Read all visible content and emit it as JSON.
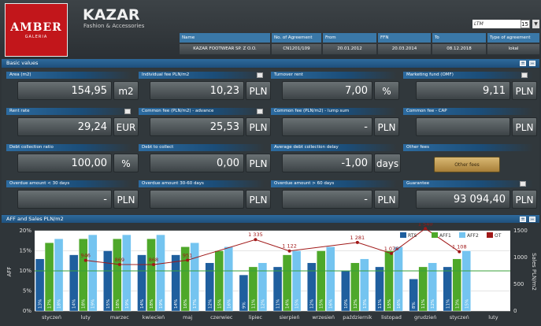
{
  "header": {
    "logo_main": "AMBER",
    "logo_sub": "GALERIA",
    "title": "KAZAR",
    "subtitle": "Fashion & Accessories",
    "period_select": "LTM",
    "period_number": "15"
  },
  "agreement": {
    "headers": [
      "Name",
      "No. of Agreement",
      "From",
      "FFN",
      "To",
      "Type of agreement"
    ],
    "values": [
      "KAZAR FOOTWEAR SP. Z O.O.",
      "CN1201/109",
      "20.01.2012",
      "20.03.2014",
      "08.12.2018",
      "lokal"
    ]
  },
  "basic": {
    "title": "Basic values",
    "fields": [
      {
        "label": "Area (m2)",
        "value": "154,95",
        "unit": "m2"
      },
      {
        "label": "Individual fee PLN/m2",
        "value": "10,23",
        "unit": "PLN"
      },
      {
        "label": "Turnover rent",
        "value": "7,00",
        "unit": "%"
      },
      {
        "label": "Marketing fund (OMF)",
        "value": "9,11",
        "unit": "PLN"
      },
      {
        "label": "Rent rate",
        "value": "29,24",
        "unit": "EUR"
      },
      {
        "label": "Common fee (PLN/m2) - advance",
        "value": "25,53",
        "unit": "PLN"
      },
      {
        "label": "Common fee (PLN/m2) - lump sum",
        "value": "-",
        "unit": "PLN"
      },
      {
        "label": "Common fee - CAP",
        "value": "",
        "unit": "PLN"
      },
      {
        "label": "Debt collection ratio",
        "value": "100,00",
        "unit": "%"
      },
      {
        "label": "Debt to collect",
        "value": "0,00",
        "unit": "PLN"
      },
      {
        "label": "Average debt collection delay",
        "value": "-1,00",
        "unit": "days"
      },
      {
        "label": "Other fees",
        "button": "Other fees"
      },
      {
        "label": "Overdue amount < 30 days",
        "value": "-",
        "unit": "PLN"
      },
      {
        "label": "Overdue amount 30-60 days",
        "value": "",
        "unit": "PLN"
      },
      {
        "label": "Overdue amount > 60 days",
        "value": "-",
        "unit": "PLN"
      },
      {
        "label": "Guarantee",
        "value": "93 094,40",
        "unit": "PLN"
      }
    ]
  },
  "chart_section_title": "AFF and Sales PLN/m2",
  "chart_data": {
    "type": "bar",
    "categories": [
      "styczeń",
      "luty",
      "marzec",
      "kwiecień",
      "maj",
      "czerwiec",
      "lipiec",
      "sierpień",
      "wrzesień",
      "październik",
      "listopad",
      "grudzień",
      "styczeń",
      "luty"
    ],
    "series": [
      {
        "name": "RTS",
        "axis": "left",
        "values": [
          13,
          14,
          15,
          14,
          14,
          12,
          9,
          11,
          12,
          10,
          11,
          8,
          11,
          0
        ],
        "labels": [
          "13%",
          "14%",
          "15%",
          "14%",
          "14%",
          "12%",
          "9%",
          "11%",
          "12%",
          "10%",
          "11%",
          "8%",
          "11%",
          ""
        ]
      },
      {
        "name": "AFF1",
        "axis": "left",
        "values": [
          17,
          18,
          18,
          18,
          16,
          15,
          11,
          14,
          15,
          12,
          15,
          11,
          13,
          0
        ],
        "labels": [
          "17%",
          "18%",
          "18%",
          "18%",
          "16%",
          "15%",
          "11%",
          "14%",
          "15%",
          "12%",
          "15%",
          "11%",
          "13%",
          ""
        ]
      },
      {
        "name": "AFF2",
        "axis": "left",
        "values": [
          18,
          19,
          19,
          19,
          17,
          16,
          12,
          15,
          16,
          13,
          16,
          12,
          15,
          0
        ],
        "labels": [
          "18%",
          "19%",
          "19%",
          "19%",
          "17%",
          "16%",
          "12%",
          "15%",
          "16%",
          "13%",
          "16%",
          "12%",
          "15%",
          ""
        ]
      },
      {
        "name": "OT",
        "axis": "right",
        "type": "line",
        "values": [
          null,
          946,
          869,
          868,
          951,
          null,
          1335,
          1122,
          null,
          1281,
          1076,
          1540,
          1108,
          null
        ],
        "labels": [
          "",
          "946",
          "869",
          "868",
          "951",
          "",
          "1 335",
          "1 122",
          "",
          "1 281",
          "1 076",
          "1 540",
          "1 108",
          ""
        ]
      }
    ],
    "ylim_left": [
      0,
      20
    ],
    "ylim_right": [
      0,
      1500
    ],
    "yticks_left": [
      "0%",
      "5%",
      "10%",
      "15%",
      "20%"
    ],
    "yticks_right": [
      "0",
      "500",
      "1000",
      "1500"
    ],
    "ylabel_left": "AFF",
    "ylabel_right": "Sales PLN/m2",
    "reference_line": 10,
    "colors": {
      "RTS": "#1f5f9e",
      "AFF1": "#4ea82a",
      "AFF2": "#74c4f0",
      "OT": "#a01818",
      "ref": "#3aa03a"
    },
    "legend": "top-right"
  }
}
